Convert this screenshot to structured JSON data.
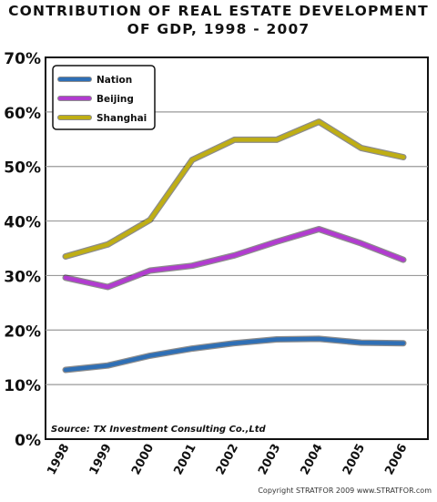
{
  "chart_data": {
    "type": "line",
    "title_lines": [
      "CONTRIBUTION OF REAL ESTATE DEVELOPMENT",
      "OF GDP, 1998 - 2007"
    ],
    "xlabel": "",
    "ylabel": "",
    "categories": [
      "1998",
      "1999",
      "2000",
      "2001",
      "2002",
      "2003",
      "2004",
      "2005",
      "2006"
    ],
    "ylim": [
      0,
      70
    ],
    "yticks": [
      "0%",
      "10%",
      "20%",
      "30%",
      "40%",
      "50%",
      "60%",
      "70%"
    ],
    "grid": true,
    "legend_position": "top-left",
    "series": [
      {
        "name": "Nation",
        "color": "#2f6fb5",
        "values": [
          12.7,
          13.5,
          15.3,
          16.6,
          17.6,
          18.3,
          18.4,
          17.7,
          17.6
        ]
      },
      {
        "name": "Beijing",
        "color": "#b13ccf",
        "values": [
          29.6,
          27.9,
          30.9,
          31.8,
          33.7,
          36.2,
          38.5,
          35.9,
          32.9
        ]
      },
      {
        "name": "Shanghai",
        "color": "#bfae14",
        "values": [
          33.5,
          35.7,
          40.2,
          51.2,
          54.9,
          54.9,
          58.2,
          53.4,
          51.7
        ]
      }
    ],
    "source_note": "Source: TX Investment Consulting Co.,Ltd"
  },
  "footer": {
    "copyright": "Copyright STRATFOR 2009   www.STRATFOR.com"
  }
}
